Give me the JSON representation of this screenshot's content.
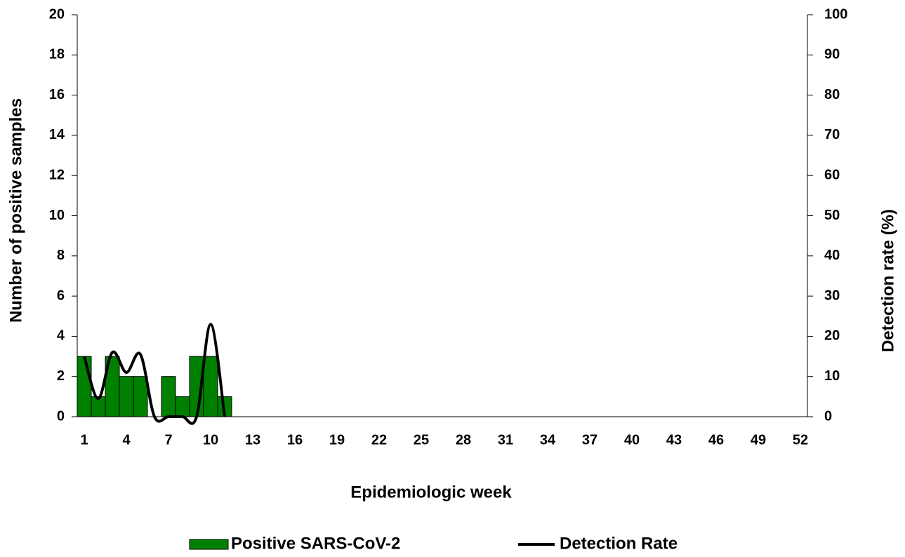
{
  "chart_data": {
    "type": "bar",
    "xlabel": "Epidemiologic week",
    "ylabel": "Number of positive samples",
    "y2label": "Detection rate (%)",
    "categories": [
      "1",
      null,
      null,
      "4",
      null,
      null,
      "7",
      null,
      null,
      "10",
      null,
      null,
      "13",
      null,
      null,
      "16",
      null,
      null,
      "19",
      null,
      null,
      "22",
      null,
      null,
      "25",
      null,
      null,
      "28",
      null,
      null,
      "31",
      null,
      null,
      "34",
      null,
      null,
      "37",
      null,
      null,
      "40",
      null,
      null,
      "43",
      null,
      null,
      "46",
      null,
      null,
      "49",
      null,
      null,
      "52"
    ],
    "series": [
      {
        "name": "Positive SARS-CoV-2",
        "type": "bar",
        "color": "#008000",
        "values": [
          3,
          1,
          3,
          2,
          2,
          0,
          2,
          1,
          3,
          3,
          1,
          null,
          null,
          null,
          null,
          null,
          null,
          null,
          null,
          null,
          null,
          null,
          null,
          null,
          null,
          null,
          null,
          null,
          null,
          null,
          null,
          null,
          null,
          null,
          null,
          null,
          null,
          null,
          null,
          null,
          null,
          null,
          null,
          null,
          null,
          null,
          null,
          null,
          null,
          null,
          null,
          null
        ]
      },
      {
        "name": "Detection Rate",
        "type": "line",
        "axis": "y2",
        "color": "#000000",
        "values": [
          15,
          4.5,
          16,
          11,
          15.5,
          0,
          0,
          0,
          0,
          23,
          0,
          null,
          null,
          null,
          null,
          null,
          null,
          null,
          null,
          null,
          null,
          null,
          null,
          null,
          null,
          null,
          null,
          null,
          null,
          null,
          null,
          null,
          null,
          null,
          null,
          null,
          null,
          null,
          null,
          null,
          null,
          null,
          null,
          null,
          null,
          null,
          null,
          null,
          null,
          null,
          null,
          null
        ]
      }
    ],
    "ylim": [
      0,
      20
    ],
    "yticks": [
      0,
      2,
      4,
      6,
      8,
      10,
      12,
      14,
      16,
      18,
      20
    ],
    "y2lim": [
      0,
      100
    ],
    "y2ticks": [
      0,
      10,
      20,
      30,
      40,
      50,
      60,
      70,
      80,
      90,
      100
    ],
    "grid": false,
    "legend": "bottom"
  }
}
